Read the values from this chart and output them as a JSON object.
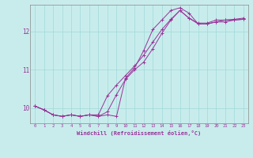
{
  "xlabel": "Windchill (Refroidissement éolien,°C)",
  "bg_color": "#c8ecec",
  "line_color": "#993399",
  "xlim": [
    -0.5,
    23.5
  ],
  "ylim": [
    9.6,
    12.7
  ],
  "yticks": [
    10,
    11,
    12
  ],
  "xticks": [
    0,
    1,
    2,
    3,
    4,
    5,
    6,
    7,
    8,
    9,
    10,
    11,
    12,
    13,
    14,
    15,
    16,
    17,
    18,
    19,
    20,
    21,
    22,
    23
  ],
  "series1_x": [
    0,
    1,
    2,
    3,
    4,
    5,
    6,
    7,
    8,
    9,
    10,
    11,
    12,
    13,
    14,
    15,
    16,
    17,
    18,
    19,
    20,
    21,
    22,
    23
  ],
  "series1_y": [
    10.05,
    9.95,
    9.82,
    9.78,
    9.82,
    9.78,
    9.82,
    9.78,
    9.82,
    9.78,
    10.78,
    11.05,
    11.5,
    12.05,
    12.3,
    12.55,
    12.62,
    12.48,
    12.2,
    12.2,
    12.25,
    12.25,
    12.3,
    12.32
  ],
  "series2_x": [
    0,
    1,
    2,
    3,
    4,
    5,
    6,
    7,
    8,
    9,
    10,
    11,
    12,
    13,
    14,
    15,
    16,
    17,
    18,
    19,
    20,
    21,
    22,
    23
  ],
  "series2_y": [
    10.05,
    9.95,
    9.82,
    9.78,
    9.82,
    9.78,
    9.82,
    9.78,
    9.9,
    10.35,
    10.75,
    11.0,
    11.2,
    11.55,
    11.95,
    12.3,
    12.55,
    12.35,
    12.2,
    12.2,
    12.25,
    12.3,
    12.3,
    12.32
  ],
  "series3_x": [
    0,
    1,
    2,
    3,
    4,
    5,
    6,
    7,
    8,
    9,
    10,
    11,
    12,
    13,
    14,
    15,
    16,
    17,
    18,
    19,
    20,
    21,
    22,
    23
  ],
  "series3_y": [
    10.05,
    9.95,
    9.82,
    9.78,
    9.82,
    9.78,
    9.82,
    9.82,
    10.32,
    10.6,
    10.85,
    11.1,
    11.38,
    11.72,
    12.05,
    12.32,
    12.55,
    12.35,
    12.22,
    12.22,
    12.3,
    12.3,
    12.32,
    12.35
  ]
}
